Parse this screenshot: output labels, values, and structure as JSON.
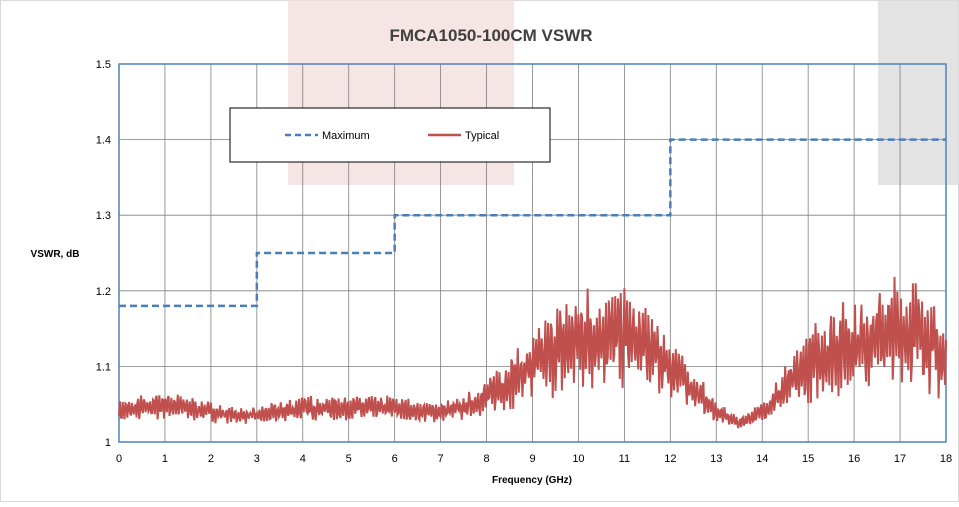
{
  "chart_data": {
    "type": "line",
    "title": "FMCA1050-100CM VSWR",
    "xlabel": "Frequency (GHz)",
    "ylabel": "VSWR, dB",
    "xlim": [
      0,
      18
    ],
    "ylim": [
      1,
      1.5
    ],
    "x_ticks": [
      0,
      1,
      2,
      3,
      4,
      5,
      6,
      7,
      8,
      9,
      10,
      11,
      12,
      13,
      14,
      15,
      16,
      17,
      18
    ],
    "y_ticks": [
      1,
      1.1,
      1.2,
      1.3,
      1.4,
      1.5
    ],
    "y_tick_labels": [
      "1",
      "1.1",
      "1.2",
      "1.3",
      "1.4",
      "1.5"
    ],
    "grid": true,
    "legend_position": "top-left",
    "colors": {
      "maximum": "#4a7ebb",
      "typical": "#c0504d",
      "frame": "#4f81bd",
      "grid": "#7f7f7f",
      "band_pink": "#f2dcdb",
      "band_gray": "#d9d9d9"
    },
    "series": [
      {
        "name": "Maximum",
        "style": "dashed",
        "x": [
          0,
          3,
          3,
          6,
          6,
          12,
          12,
          18
        ],
        "y": [
          1.18,
          1.18,
          1.25,
          1.25,
          1.3,
          1.3,
          1.4,
          1.4
        ]
      },
      {
        "name": "Typical",
        "style": "solid",
        "x": [
          0,
          0.5,
          1,
          1.5,
          2,
          2.5,
          3,
          3.5,
          4,
          4.5,
          5,
          5.5,
          6,
          6.5,
          7,
          7.5,
          8,
          8.5,
          9,
          9.5,
          10,
          10.5,
          11,
          11.5,
          12,
          12.5,
          13,
          13.5,
          14,
          14.5,
          15,
          15.5,
          16,
          16.5,
          17,
          17.5,
          18
        ],
        "y": [
          1.04,
          1.045,
          1.05,
          1.045,
          1.04,
          1.035,
          1.035,
          1.04,
          1.045,
          1.045,
          1.045,
          1.045,
          1.045,
          1.04,
          1.04,
          1.045,
          1.06,
          1.08,
          1.1,
          1.12,
          1.135,
          1.14,
          1.14,
          1.125,
          1.1,
          1.07,
          1.04,
          1.025,
          1.04,
          1.07,
          1.1,
          1.12,
          1.13,
          1.14,
          1.145,
          1.145,
          1.1
        ]
      }
    ]
  }
}
